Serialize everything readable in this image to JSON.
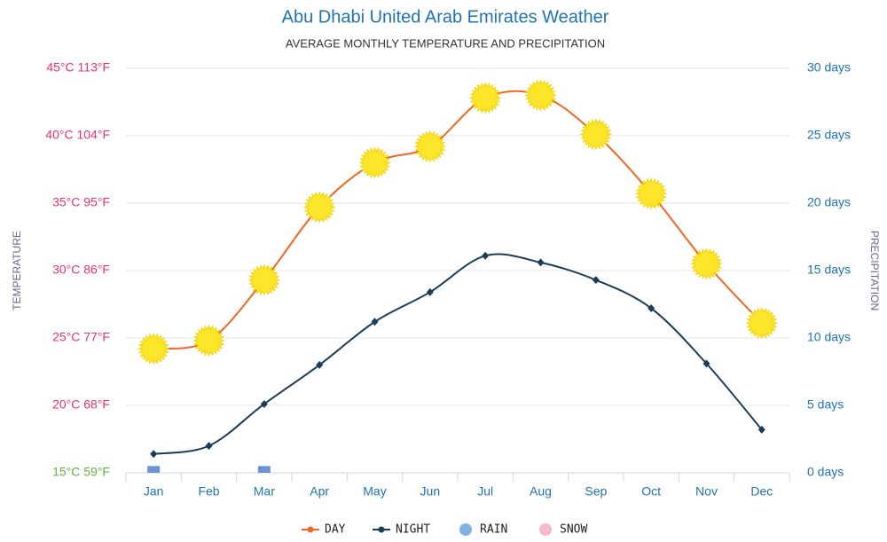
{
  "chart_data": {
    "type": "line",
    "title": "Abu Dhabi United Arab Emirates Weather",
    "subtitle": "AVERAGE MONTHLY TEMPERATURE AND PRECIPITATION",
    "y_label": "TEMPERATURE",
    "y2_label": "PRECIPITATION",
    "categories": [
      "Jan",
      "Feb",
      "Mar",
      "Apr",
      "May",
      "Jun",
      "Jul",
      "Aug",
      "Sep",
      "Oct",
      "Nov",
      "Dec"
    ],
    "ylim": [
      15,
      45
    ],
    "yticks": [
      {
        "value": 15,
        "label": "15°C 59°F"
      },
      {
        "value": 20,
        "label": "20°C 68°F"
      },
      {
        "value": 25,
        "label": "25°C 77°F"
      },
      {
        "value": 30,
        "label": "30°C 86°F"
      },
      {
        "value": 35,
        "label": "35°C 95°F"
      },
      {
        "value": 40,
        "label": "40°C 104°F"
      },
      {
        "value": 45,
        "label": "45°C 113°F"
      }
    ],
    "ytick_colors": [
      "#5fb53a",
      "#e8336d",
      "#e8336d",
      "#e8336d",
      "#e8336d",
      "#e8336d",
      "#e8336d"
    ],
    "y2lim": [
      0,
      30
    ],
    "y2ticks": [
      {
        "value": 0,
        "label": "0 days"
      },
      {
        "value": 5,
        "label": "5 days"
      },
      {
        "value": 10,
        "label": "10 days"
      },
      {
        "value": 15,
        "label": "15 days"
      },
      {
        "value": 20,
        "label": "20 days"
      },
      {
        "value": 25,
        "label": "25 days"
      },
      {
        "value": 30,
        "label": "30 days"
      }
    ],
    "grid": true,
    "series": [
      {
        "name": "DAY",
        "color": "#f26522",
        "marker_color": "#fde52a",
        "values": [
          24.2,
          24.8,
          29.3,
          34.7,
          38.0,
          39.2,
          42.8,
          43.0,
          40.1,
          35.7,
          30.5,
          26.1
        ]
      },
      {
        "name": "NIGHT",
        "color": "#1b3d57",
        "values": [
          16.4,
          17.0,
          20.1,
          23.0,
          26.2,
          28.4,
          31.1,
          30.6,
          29.3,
          27.2,
          23.1,
          18.2
        ]
      },
      {
        "name": "RAIN",
        "color": "#6a93d4",
        "legend_color": "#80b1e3",
        "axis": "y2",
        "values": [
          0.5,
          0,
          0.5,
          0,
          0,
          0,
          0,
          0,
          0,
          0,
          0,
          0
        ]
      },
      {
        "name": "SNOW",
        "color": "#f6b8cb",
        "axis": "y2",
        "values": [
          0,
          0,
          0,
          0,
          0,
          0,
          0,
          0,
          0,
          0,
          0,
          0
        ]
      }
    ]
  }
}
